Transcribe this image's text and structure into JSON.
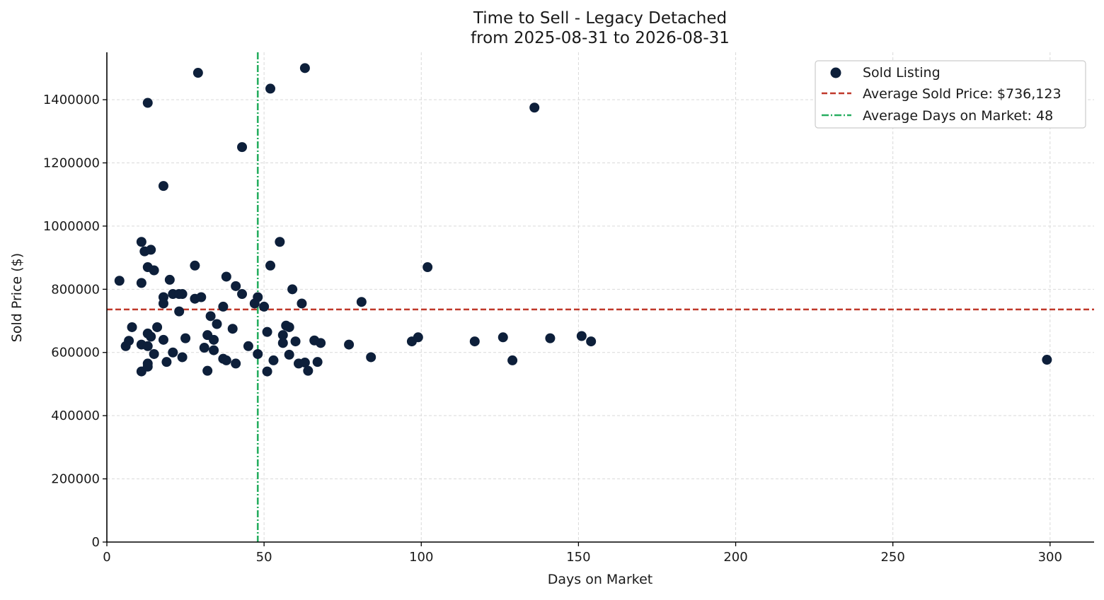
{
  "chart_data": {
    "type": "scatter",
    "title": "Time to Sell - Legacy Detached",
    "subtitle": "from 2025-08-31 to 2026-08-31",
    "xlabel": "Days on Market",
    "ylabel": "Sold Price ($)",
    "xlim": [
      0,
      314
    ],
    "ylim": [
      0,
      1550000
    ],
    "xticks": [
      0,
      50,
      100,
      150,
      200,
      250,
      300
    ],
    "yticks": [
      0,
      200000,
      400000,
      600000,
      800000,
      1000000,
      1200000,
      1400000
    ],
    "grid": true,
    "legend_position": "top-right",
    "legend": [
      {
        "label": "Sold Listing",
        "kind": "marker"
      },
      {
        "label": "Average Sold Price: $736,123",
        "kind": "dashed-line"
      },
      {
        "label": "Average Days on Market: 48",
        "kind": "dashdot-line"
      }
    ],
    "colors": {
      "points": "#0d1f3a",
      "avg_price_line": "#c0392b",
      "avg_days_line": "#27ae60"
    },
    "reference_lines": {
      "avg_sold_price": 736123,
      "avg_days_on_market": 48
    },
    "series": [
      {
        "name": "Sold Listing",
        "points": [
          [
            4,
            827000
          ],
          [
            6,
            620000
          ],
          [
            7,
            637000
          ],
          [
            8,
            680000
          ],
          [
            11,
            950000
          ],
          [
            11,
            820000
          ],
          [
            11,
            625000
          ],
          [
            11,
            540000
          ],
          [
            12,
            920000
          ],
          [
            13,
            1390000
          ],
          [
            13,
            870000
          ],
          [
            13,
            660000
          ],
          [
            13,
            620000
          ],
          [
            13,
            565000
          ],
          [
            13,
            555000
          ],
          [
            14,
            925000
          ],
          [
            14,
            650000
          ],
          [
            15,
            860000
          ],
          [
            15,
            595000
          ],
          [
            16,
            680000
          ],
          [
            18,
            1127000
          ],
          [
            18,
            775000
          ],
          [
            18,
            755000
          ],
          [
            18,
            640000
          ],
          [
            19,
            570000
          ],
          [
            20,
            830000
          ],
          [
            21,
            785000
          ],
          [
            21,
            600000
          ],
          [
            23,
            785000
          ],
          [
            23,
            730000
          ],
          [
            24,
            785000
          ],
          [
            24,
            585000
          ],
          [
            25,
            645000
          ],
          [
            28,
            875000
          ],
          [
            28,
            770000
          ],
          [
            29,
            1485000
          ],
          [
            30,
            775000
          ],
          [
            31,
            615000
          ],
          [
            32,
            655000
          ],
          [
            32,
            542000
          ],
          [
            33,
            715000
          ],
          [
            34,
            640000
          ],
          [
            34,
            607000
          ],
          [
            35,
            690000
          ],
          [
            37,
            745000
          ],
          [
            37,
            580000
          ],
          [
            38,
            840000
          ],
          [
            38,
            575000
          ],
          [
            40,
            675000
          ],
          [
            41,
            810000
          ],
          [
            41,
            565000
          ],
          [
            43,
            1250000
          ],
          [
            43,
            785000
          ],
          [
            45,
            620000
          ],
          [
            47,
            755000
          ],
          [
            48,
            775000
          ],
          [
            48,
            595000
          ],
          [
            50,
            745000
          ],
          [
            51,
            665000
          ],
          [
            51,
            540000
          ],
          [
            52,
            1435000
          ],
          [
            52,
            875000
          ],
          [
            53,
            575000
          ],
          [
            55,
            950000
          ],
          [
            56,
            655000
          ],
          [
            56,
            630000
          ],
          [
            57,
            685000
          ],
          [
            58,
            680000
          ],
          [
            58,
            593000
          ],
          [
            59,
            800000
          ],
          [
            60,
            635000
          ],
          [
            61,
            565000
          ],
          [
            62,
            755000
          ],
          [
            63,
            1500000
          ],
          [
            63,
            568000
          ],
          [
            64,
            542000
          ],
          [
            66,
            638000
          ],
          [
            67,
            570000
          ],
          [
            68,
            630000
          ],
          [
            77,
            625000
          ],
          [
            81,
            760000
          ],
          [
            84,
            585000
          ],
          [
            97,
            635000
          ],
          [
            99,
            648000
          ],
          [
            102,
            870000
          ],
          [
            117,
            635000
          ],
          [
            126,
            648000
          ],
          [
            129,
            575000
          ],
          [
            136,
            1375000
          ],
          [
            141,
            645000
          ],
          [
            151,
            652000
          ],
          [
            154,
            635000
          ],
          [
            299,
            577000
          ]
        ]
      }
    ]
  }
}
